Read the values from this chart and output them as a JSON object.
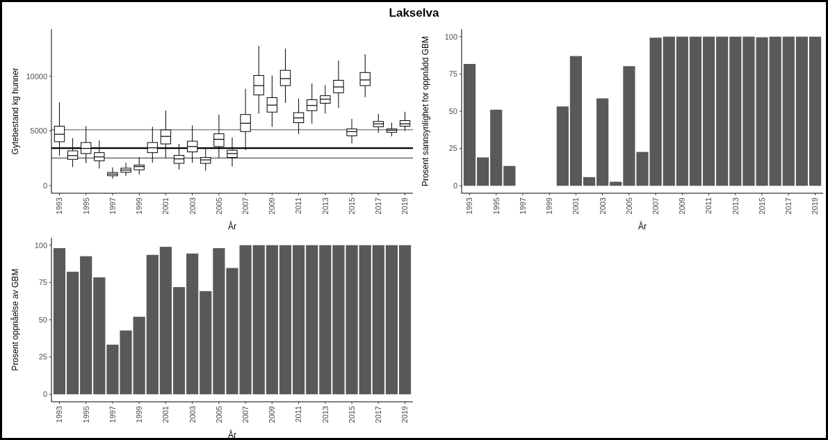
{
  "chart_data": [
    {
      "type": "box",
      "title": "Lakselva",
      "xlabel": "År",
      "ylabel": "Gytebestand kg hunner",
      "categories": [
        "1993",
        null,
        "1995",
        null,
        "1997",
        null,
        "1999",
        null,
        "2001",
        null,
        "2003",
        null,
        "2005",
        null,
        "2007",
        null,
        "2009",
        null,
        "2011",
        null,
        "2013",
        null,
        "2015",
        null,
        "2017",
        null,
        "2019"
      ],
      "boxes": [
        {
          "low": 2740,
          "q1": 4010,
          "median": 4690,
          "q3": 5430,
          "high": 7600
        },
        {
          "low": 1690,
          "q1": 2400,
          "median": 2740,
          "q3": 3180,
          "high": 4330
        },
        {
          "low": 2050,
          "q1": 2930,
          "median": 3400,
          "q3": 3940,
          "high": 5430
        },
        {
          "low": 1560,
          "q1": 2270,
          "median": 2620,
          "q3": 3010,
          "high": 4130
        },
        {
          "low": 640,
          "q1": 900,
          "median": 1050,
          "q3": 1200,
          "high": 1660
        },
        {
          "low": 880,
          "q1": 1220,
          "median": 1420,
          "q3": 1590,
          "high": 2080
        },
        {
          "low": 1000,
          "q1": 1440,
          "median": 1740,
          "q3": 1880,
          "high": 2590
        },
        {
          "low": 2080,
          "q1": 3010,
          "median": 3450,
          "q3": 3940,
          "high": 5380
        },
        {
          "low": 2520,
          "q1": 3810,
          "median": 4500,
          "q3": 5090,
          "high": 6870
        },
        {
          "low": 1470,
          "q1": 2030,
          "median": 2440,
          "q3": 2760,
          "high": 3810
        },
        {
          "low": 2080,
          "q1": 3080,
          "median": 3570,
          "q3": 4060,
          "high": 5500
        },
        {
          "low": 1370,
          "q1": 2030,
          "median": 2350,
          "q3": 2570,
          "high": 3500
        },
        {
          "low": 2520,
          "q1": 3570,
          "median": 4230,
          "q3": 4740,
          "high": 6500
        },
        {
          "low": 1740,
          "q1": 2570,
          "median": 2930,
          "q3": 3230,
          "high": 4400
        },
        {
          "low": 3250,
          "q1": 4940,
          "median": 5700,
          "q3": 6500,
          "high": 8850
        },
        {
          "low": 6580,
          "q1": 8290,
          "median": 9140,
          "q3": 10070,
          "high": 12760
        },
        {
          "low": 5380,
          "q1": 6720,
          "median": 7360,
          "q3": 8040,
          "high": 10070
        },
        {
          "low": 7560,
          "q1": 9140,
          "median": 9780,
          "q3": 10540,
          "high": 12520
        },
        {
          "low": 4720,
          "q1": 5750,
          "median": 6190,
          "q3": 6670,
          "high": 7970
        },
        {
          "low": 5670,
          "q1": 6850,
          "median": 7330,
          "q3": 7850,
          "high": 9340
        },
        {
          "low": 6580,
          "q1": 7530,
          "median": 7900,
          "q3": 8220,
          "high": 9170
        },
        {
          "low": 7090,
          "q1": 8480,
          "median": 9020,
          "q3": 9630,
          "high": 11440
        },
        {
          "low": 3860,
          "q1": 4550,
          "median": 4940,
          "q3": 5180,
          "high": 6110
        },
        {
          "low": 8090,
          "q1": 9140,
          "median": 9660,
          "q3": 10340,
          "high": 12000
        },
        {
          "low": 4820,
          "q1": 5380,
          "median": 5650,
          "q3": 5870,
          "high": 6550
        },
        {
          "low": 4500,
          "q1": 4870,
          "median": 5060,
          "q3": 5180,
          "high": 5750
        },
        {
          "low": 4990,
          "q1": 5430,
          "median": 5650,
          "q3": 5940,
          "high": 6750
        }
      ],
      "ylim": [
        -700,
        14300
      ],
      "yticks": [
        0,
        5000,
        10000
      ],
      "ref_lines": [
        {
          "axis": "y",
          "value": 5100,
          "color": "#555555"
        },
        {
          "axis": "y",
          "value": 3420,
          "color": "#000000"
        },
        {
          "axis": "y",
          "value": 2520,
          "color": "#555555"
        }
      ],
      "grid": false
    },
    {
      "type": "bar",
      "xlabel": "År",
      "ylabel": "Prosent sannsynlighet for oppnådd GBM",
      "categories": [
        "1993",
        null,
        "1995",
        null,
        "1997",
        null,
        "1999",
        null,
        "2001",
        null,
        "2003",
        null,
        "2005",
        null,
        "2007",
        null,
        "2009",
        null,
        "2011",
        null,
        "2013",
        null,
        "2015",
        null,
        "2017",
        null,
        "2019"
      ],
      "values": [
        81.7,
        19,
        51,
        13.3,
        0,
        0,
        0,
        53.2,
        87,
        5.8,
        58.6,
        2.7,
        80.2,
        22.7,
        99.3,
        100,
        100,
        100,
        100,
        100,
        100,
        100,
        99.6,
        100,
        100,
        100,
        100
      ],
      "color": "#595959",
      "ylim": [
        -5,
        105
      ],
      "yticks": [
        0,
        25,
        50,
        75,
        100
      ],
      "grid": false
    },
    {
      "type": "bar",
      "xlabel": "År",
      "ylabel": "Prosent oppnåelse av GBM",
      "categories": [
        "1993",
        null,
        "1995",
        null,
        "1997",
        null,
        "1999",
        null,
        "2001",
        null,
        "2003",
        null,
        "2005",
        null,
        "2007",
        null,
        "2009",
        null,
        "2011",
        null,
        "2013",
        null,
        "2015",
        null,
        "2017",
        null,
        "2019"
      ],
      "values": [
        98,
        82.2,
        92.6,
        78.4,
        33.3,
        42.8,
        52,
        93.5,
        98.9,
        71.9,
        94.4,
        69.2,
        98,
        84.7,
        100,
        100,
        100,
        100,
        100,
        100,
        100,
        100,
        100,
        100,
        100,
        100,
        100
      ],
      "color": "#595959",
      "ylim": [
        -5,
        105
      ],
      "yticks": [
        0,
        25,
        50,
        75,
        100
      ],
      "grid": false
    }
  ]
}
